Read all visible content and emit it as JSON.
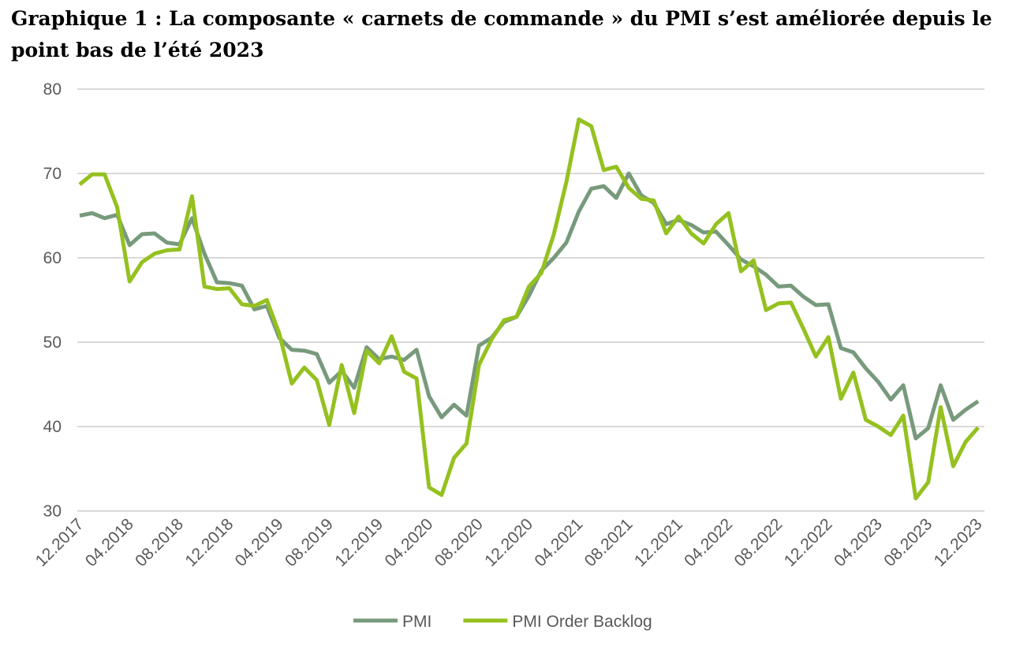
{
  "chart_data": {
    "type": "line",
    "title": "Graphique 1 : La composante « carnets de commande » du PMI s’est améliorée depuis le point bas de l’été 2023",
    "categories": [
      "12.2017",
      null,
      null,
      null,
      "04.2018",
      null,
      null,
      null,
      "08.2018",
      null,
      null,
      null,
      "12.2018",
      null,
      null,
      null,
      "04.2019",
      null,
      null,
      null,
      "08.2019",
      null,
      null,
      null,
      "12.2019",
      null,
      null,
      null,
      "04.2020",
      null,
      null,
      null,
      "08.2020",
      null,
      null,
      null,
      "12.2020",
      null,
      null,
      null,
      "04.2021",
      null,
      null,
      null,
      "08.2021",
      null,
      null,
      null,
      "12.2021",
      null,
      null,
      null,
      "04.2022",
      null,
      null,
      null,
      "08.2022",
      null,
      null,
      null,
      "12.2022",
      null,
      null,
      null,
      "04.2023",
      null,
      null,
      null,
      "08.2023",
      null,
      null,
      null,
      "12.2023"
    ],
    "series": [
      {
        "name": "PMI",
        "color": "#789a7c",
        "values": [
          65,
          65.3,
          64.7,
          65.1,
          61.5,
          62.8,
          62.9,
          61.8,
          61.6,
          64.7,
          60.5,
          57.1,
          57.0,
          56.7,
          53.9,
          54.3,
          50.5,
          49.1,
          49.0,
          48.6,
          45.2,
          46.6,
          44.6,
          49.4,
          48.0,
          48.3,
          47.9,
          49.1,
          43.6,
          41.1,
          42.6,
          41.3,
          49.6,
          50.5,
          52.4,
          53.0,
          55.5,
          58.5,
          60.0,
          61.8,
          65.5,
          68.2,
          68.5,
          67.1,
          70.0,
          67.4,
          66.5,
          64.0,
          64.5,
          63.9,
          63.0,
          63.1,
          61.5,
          59.8,
          59.0,
          58.0,
          56.6,
          56.7,
          55.4,
          54.4,
          54.5,
          49.3,
          48.8,
          46.9,
          45.3,
          43.2,
          44.9,
          38.6,
          39.8,
          44.9,
          40.8,
          42.0,
          43.0
        ]
      },
      {
        "name": "PMI Order Backlog",
        "color": "#94c11f",
        "values": [
          68.7,
          69.9,
          69.9,
          66.0,
          57.2,
          59.5,
          60.5,
          60.9,
          61.0,
          67.3,
          56.6,
          56.3,
          56.4,
          54.5,
          54.3,
          55.0,
          51.0,
          45.1,
          47.0,
          45.5,
          40.2,
          47.3,
          41.6,
          49.0,
          47.5,
          50.7,
          46.5,
          45.7,
          32.8,
          31.9,
          36.3,
          38.0,
          47.3,
          50.3,
          52.6,
          53.0,
          56.6,
          58.2,
          62.8,
          69.0,
          76.4,
          75.6,
          70.4,
          70.8,
          68.3,
          67.0,
          66.8,
          62.9,
          64.9,
          62.9,
          61.7,
          64.0,
          65.3,
          58.4,
          59.7,
          53.8,
          54.6,
          54.7,
          51.6,
          48.3,
          50.6,
          43.3,
          46.4,
          40.8,
          40.0,
          39.0,
          41.3,
          31.5,
          33.4,
          42.3,
          35.3,
          38.2,
          39.9
        ]
      }
    ],
    "ylim": [
      30,
      80
    ],
    "yticks": [
      30,
      40,
      50,
      60,
      70,
      80
    ],
    "grid": true,
    "legend": "bottom"
  }
}
